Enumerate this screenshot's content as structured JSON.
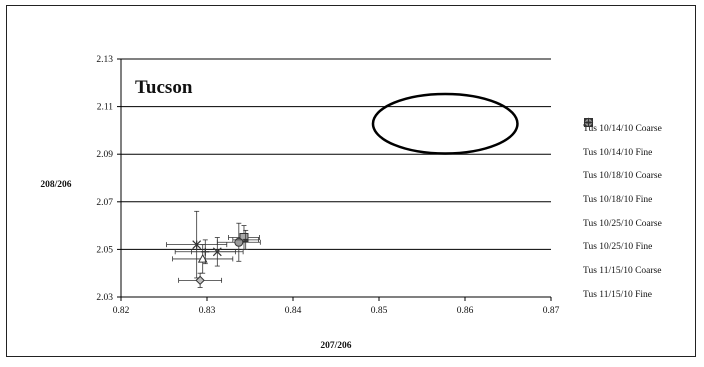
{
  "chart_data": {
    "type": "scatter",
    "title": "Tucson",
    "xlabel": "207/206",
    "ylabel": "208/206",
    "xlim": [
      0.82,
      0.87
    ],
    "ylim": [
      2.03,
      2.13
    ],
    "x_ticks": [
      "0.82",
      "0.83",
      "0.84",
      "0.85",
      "0.86",
      "0.87"
    ],
    "y_ticks": [
      "2.03",
      "2.05",
      "2.07",
      "2.09",
      "2.11",
      "2.13"
    ],
    "grid": "horizontal",
    "legend_position": "right",
    "series": [
      {
        "name": "Tus 10/14/10 Coarse",
        "marker": "diamond",
        "points": [
          {
            "x": 0.8292,
            "y": 2.037,
            "xerr": 0.0025,
            "yerr": 0.003
          }
        ]
      },
      {
        "name": "Tus 10/14/10 Fine",
        "marker": "square",
        "points": [
          {
            "x": 0.8343,
            "y": 2.055,
            "xerr": 0.0018,
            "yerr": 0.005
          }
        ]
      },
      {
        "name": "Tus 10/18/10 Coarse",
        "marker": "triangle",
        "points": [
          {
            "x": 0.8295,
            "y": 2.046,
            "xerr": 0.0035,
            "yerr": 0.006
          }
        ]
      },
      {
        "name": "Tus 10/18/10 Fine",
        "marker": "x",
        "points": [
          {
            "x": 0.8312,
            "y": 2.049,
            "xerr": 0.003,
            "yerr": 0.006
          }
        ]
      },
      {
        "name": "Tus 10/25/10 Coarse",
        "marker": "asterisk",
        "points": [
          {
            "x": 0.8288,
            "y": 2.052,
            "xerr": 0.0035,
            "yerr": 0.014
          }
        ]
      },
      {
        "name": "Tus 10/25/10 Fine",
        "marker": "circle",
        "points": [
          {
            "x": 0.8337,
            "y": 2.053,
            "xerr": 0.0025,
            "yerr": 0.008
          }
        ]
      },
      {
        "name": "Tus 11/15/10 Coarse",
        "marker": "plus",
        "points": [
          {
            "x": 0.8298,
            "y": 2.049,
            "xerr": 0.0035,
            "yerr": 0.005
          }
        ]
      },
      {
        "name": "Tus 11/15/10 Fine",
        "marker": "dash",
        "points": [
          {
            "x": 0.8345,
            "y": 2.054,
            "xerr": 0.0015,
            "yerr": 0.004
          }
        ]
      }
    ],
    "annotation_ellipse": {
      "cx": 0.8577,
      "cy": 2.1028,
      "rx": 0.0084,
      "ry": 0.0125
    }
  }
}
